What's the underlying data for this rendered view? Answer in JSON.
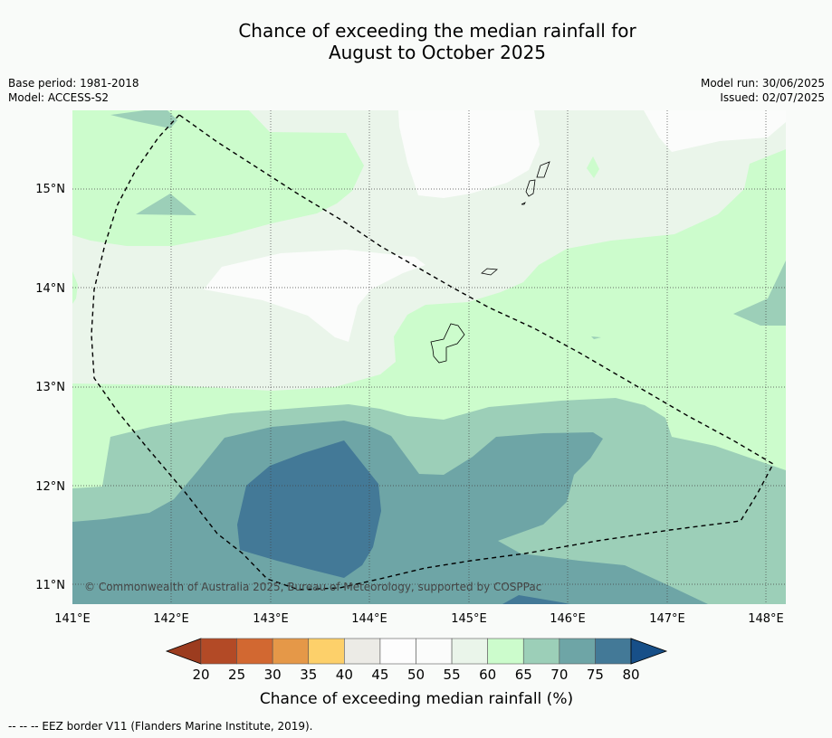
{
  "title": {
    "line1": "Chance of exceeding the median rainfall for",
    "line2": "August to October 2025"
  },
  "meta": {
    "base_period": "Base period: 1981-2018",
    "model": "Model: ACCESS-S2",
    "model_run": "Model run: 30/06/2025",
    "issued": "Issued: 02/07/2025"
  },
  "map": {
    "lon_ticks": [
      "141°E",
      "142°E",
      "143°E",
      "144°E",
      "145°E",
      "146°E",
      "147°E",
      "148°E"
    ],
    "lat_ticks": [
      "15°N",
      "14°N",
      "13°N",
      "12°N",
      "11°N"
    ],
    "copyright": "© Commonwealth of Australia 2025, Bureau of Meteorology, supported by COSPPac"
  },
  "colorbar": {
    "ticks": [
      "20",
      "25",
      "30",
      "35",
      "40",
      "45",
      "50",
      "55",
      "60",
      "65",
      "70",
      "75",
      "80"
    ],
    "colors": [
      "#b34a26",
      "#d26831",
      "#e59848",
      "#fdd06a",
      "#ecebe6",
      "#fdfdfd",
      "#fbfcfb",
      "#eaf5ea",
      "#ccfccc",
      "#9ccfb8",
      "#6ea5a6",
      "#437997"
    ],
    "under_color": "#9c3c1f",
    "over_color": "#174f88",
    "label": "Chance of exceeding median rainfall (%)"
  },
  "footnote": "--  --  -- EEZ border V11 (Flanders Marine Institute, 2019)."
}
